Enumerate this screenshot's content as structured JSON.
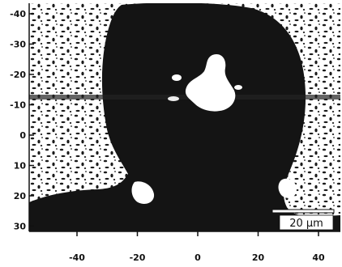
{
  "image": {
    "y_axis": {
      "ticks": [
        "-40",
        "-30",
        "-20",
        "-10",
        "0",
        "10",
        "20",
        "30"
      ]
    },
    "x_axis": {
      "ticks": [
        "-40",
        "-20",
        "0",
        "20",
        "40"
      ]
    },
    "scale_bar": {
      "label": "20 μm"
    },
    "colors": {
      "background": "#ffffff",
      "dark_region": "#111111",
      "bright_spot": "#ffffff"
    }
  }
}
